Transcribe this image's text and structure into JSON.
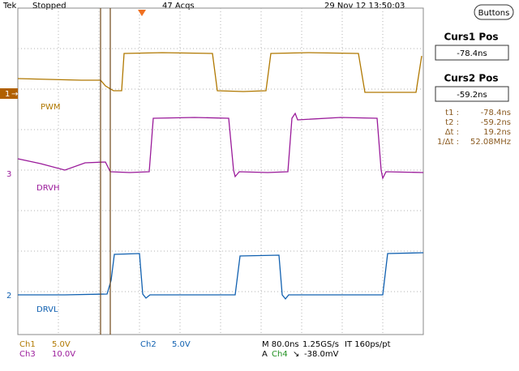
{
  "header": {
    "brand": "Tek",
    "status": "Stopped",
    "acquisitions": "47 Acqs",
    "timestamp": "29 Nov 12 13:50:03",
    "button": "Buttons"
  },
  "cursors": {
    "curs1": {
      "title": "Curs1 Pos",
      "value": "-78.4ns"
    },
    "curs2": {
      "title": "Curs2 Pos",
      "value": "-59.2ns"
    },
    "readouts": [
      {
        "label": "t1 :",
        "value": "-78.4ns"
      },
      {
        "label": "t2 :",
        "value": "-59.2ns"
      },
      {
        "label": "Δt :",
        "value": "19.2ns"
      },
      {
        "label": "1/Δt :",
        "value": "52.08MHz"
      }
    ]
  },
  "channels": [
    {
      "marker": "1",
      "name": "PWM"
    },
    {
      "marker": "3",
      "name": "DRVH"
    },
    {
      "marker": "2",
      "name": "DRVL"
    }
  ],
  "footer": {
    "ch1": {
      "name": "Ch1",
      "scale": "5.0V"
    },
    "ch3": {
      "name": "Ch3",
      "scale": "10.0V"
    },
    "ch2": {
      "name": "Ch2",
      "scale": "5.0V"
    },
    "timebase": {
      "scale": "M 80.0ns",
      "rate": "1.25GS/s",
      "interp": "IT 160ps/pt"
    },
    "trigger": {
      "mode": "A",
      "source": "Ch4",
      "slope": "↘",
      "level": "-38.0mV"
    }
  }
}
